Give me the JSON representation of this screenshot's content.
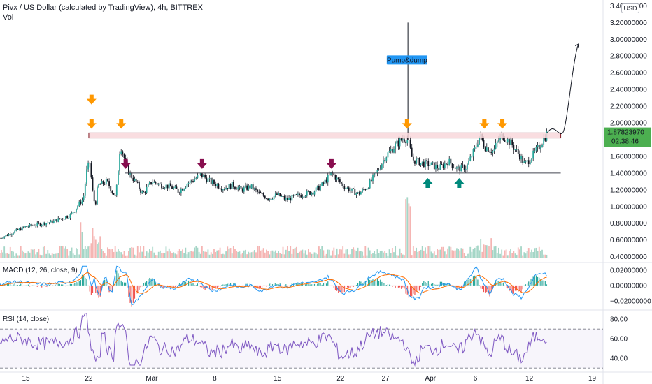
{
  "header": {
    "title": "Pivx / US Dollar (calculated by TradingView), 4h, BITTREX",
    "volume_label": "Vol",
    "currency_badge": "USD"
  },
  "chart_data": [
    {
      "type": "candlestick",
      "title": "Pivx / US Dollar (calculated by TradingView), 4h, BITTREX",
      "y_axis": {
        "ticks": [
          "3.40000000",
          "3.20000000",
          "3.00000000",
          "2.80000000",
          "2.60000000",
          "2.40000000",
          "2.20000000",
          "2.00000000",
          "1.80000000",
          "1.60000000",
          "1.40000000",
          "1.20000000",
          "1.00000000",
          "0.80000000",
          "0.60000000",
          "0.40000000"
        ],
        "range": [
          0.38,
          3.42
        ]
      },
      "x_axis": {
        "ticks": [
          {
            "label": "15",
            "day": 0
          },
          {
            "label": "22",
            "day": 7
          },
          {
            "label": "Mar",
            "day": 14
          },
          {
            "label": "8",
            "day": 21
          },
          {
            "label": "15",
            "day": 28
          },
          {
            "label": "22",
            "day": 35
          },
          {
            "label": "27",
            "day": 40
          },
          {
            "label": "Apr",
            "day": 45
          },
          {
            "label": "6",
            "day": 50
          },
          {
            "label": "12",
            "day": 56
          },
          {
            "label": "19",
            "day": 63
          }
        ]
      },
      "price_path": [
        [
          -2.9,
          0.62
        ],
        [
          0,
          0.76
        ],
        [
          3,
          0.82
        ],
        [
          5,
          0.9
        ],
        [
          6.4,
          1.1
        ],
        [
          6.8,
          1.45
        ],
        [
          7.1,
          1.52
        ],
        [
          7.4,
          1.2
        ],
        [
          7.7,
          1.0
        ],
        [
          8.0,
          1.25
        ],
        [
          9.0,
          1.3
        ],
        [
          10.0,
          1.1
        ],
        [
          10.5,
          1.75
        ],
        [
          11.0,
          1.55
        ],
        [
          11.5,
          1.4
        ],
        [
          12.3,
          1.28
        ],
        [
          13.0,
          1.15
        ],
        [
          14.0,
          1.3
        ],
        [
          15.0,
          1.26
        ],
        [
          16.0,
          1.24
        ],
        [
          17.0,
          1.18
        ],
        [
          18.0,
          1.28
        ],
        [
          19.5,
          1.38
        ],
        [
          20.5,
          1.3
        ],
        [
          22.0,
          1.22
        ],
        [
          23.0,
          1.26
        ],
        [
          24.0,
          1.2
        ],
        [
          25.0,
          1.24
        ],
        [
          26.0,
          1.15
        ],
        [
          27.0,
          1.1
        ],
        [
          28.0,
          1.14
        ],
        [
          29.0,
          1.08
        ],
        [
          30.0,
          1.12
        ],
        [
          31.0,
          1.15
        ],
        [
          32.0,
          1.18
        ],
        [
          33.0,
          1.26
        ],
        [
          34.0,
          1.4
        ],
        [
          35.0,
          1.28
        ],
        [
          36.0,
          1.2
        ],
        [
          37.0,
          1.15
        ],
        [
          38.0,
          1.24
        ],
        [
          39.0,
          1.4
        ],
        [
          40.0,
          1.6
        ],
        [
          41.0,
          1.72
        ],
        [
          42.0,
          1.82
        ],
        [
          42.5,
          1.8
        ],
        [
          43.0,
          1.56
        ],
        [
          44.0,
          1.52
        ],
        [
          45.0,
          1.5
        ],
        [
          46.0,
          1.46
        ],
        [
          47.0,
          1.54
        ],
        [
          48.0,
          1.45
        ],
        [
          49.0,
          1.47
        ],
        [
          50.0,
          1.7
        ],
        [
          50.5,
          1.86
        ],
        [
          51.0,
          1.72
        ],
        [
          52.0,
          1.66
        ],
        [
          52.5,
          1.78
        ],
        [
          53.0,
          1.85
        ],
        [
          54.0,
          1.75
        ],
        [
          55.0,
          1.6
        ],
        [
          55.5,
          1.5
        ],
        [
          56.0,
          1.56
        ],
        [
          57.0,
          1.7
        ],
        [
          58.0,
          1.88
        ]
      ],
      "last_price": "1.87823970",
      "countdown": "02:38:46",
      "resistance_zone": [
        1.82,
        1.88
      ],
      "support_level": 1.4,
      "annotation": "Pump&dump",
      "arrows": {
        "orange_down_days": [
          7.3,
          7.3,
          10.6,
          42.4,
          51.0,
          53.0
        ],
        "maroon_down_days": [
          11.1,
          19.6,
          34.0
        ],
        "teal_up_days": [
          44.7,
          48.2
        ]
      },
      "projection": "curved arrow up to about 2.95"
    },
    {
      "type": "line",
      "title": "MACD (12, 26, close, 9)",
      "y_axis": {
        "ticks": [
          "0.02000000",
          "0.00000000",
          "−0.02000000"
        ],
        "range": [
          -0.03,
          0.028
        ]
      }
    },
    {
      "type": "line",
      "title": "RSI (14, close)",
      "y_axis": {
        "ticks": [
          "80.00",
          "60.00",
          "40.00"
        ],
        "range": [
          28,
          88
        ]
      },
      "upper_band": 70,
      "lower_band": 30
    }
  ],
  "colors": {
    "up": "#26a69a",
    "down": "#ef5350",
    "candle_body": "#131722",
    "orange_arrow": "#ff9800",
    "maroon_arrow": "#880e4f",
    "teal_arrow": "#00897b",
    "zone_fill": "#f8d7da",
    "zone_border": "#801922",
    "macd_line": "#2196f3",
    "signal_line": "#ff6d00",
    "rsi_line": "#7e57c2",
    "price_tag": "#4caf50",
    "annotation_bg": "#2196f3"
  }
}
